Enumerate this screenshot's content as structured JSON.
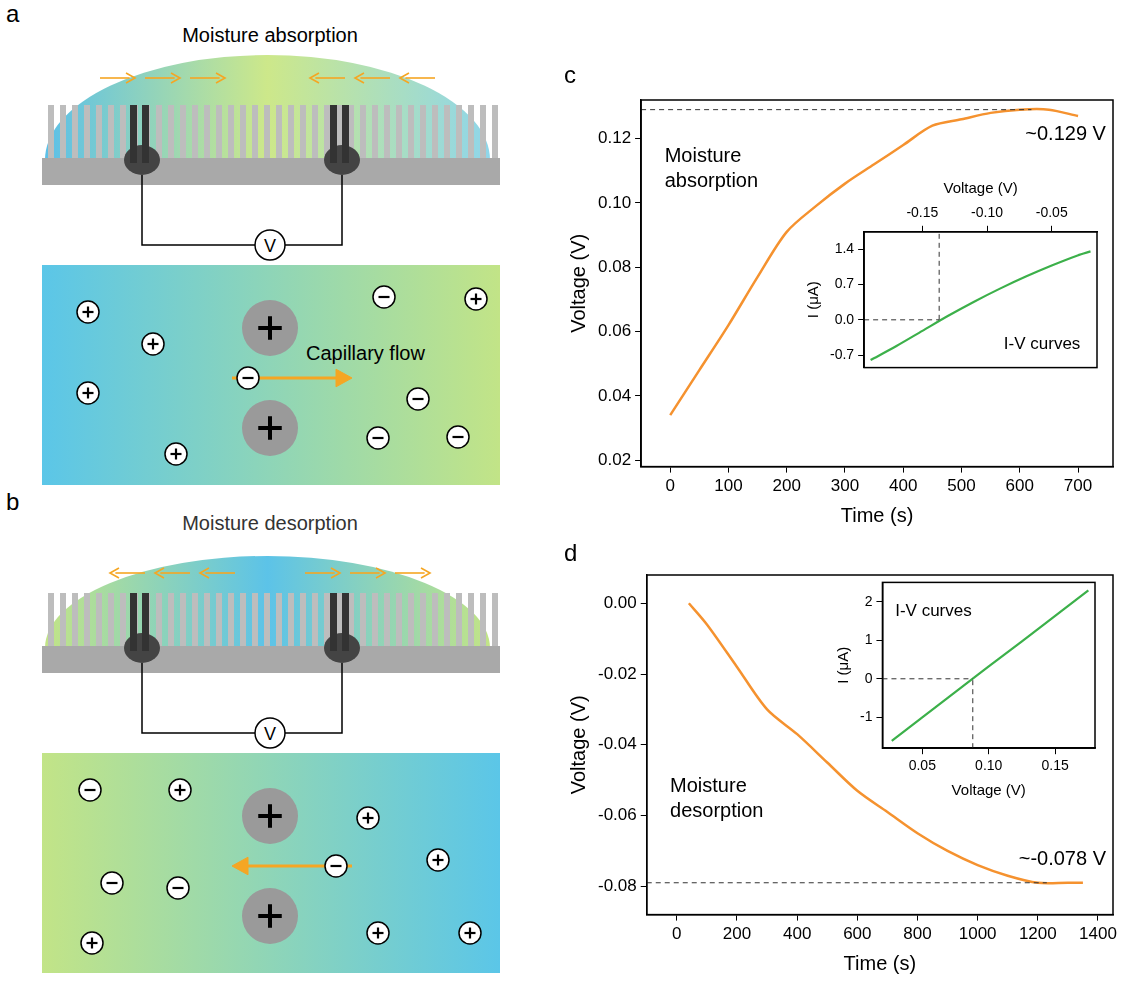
{
  "diagrams": [
    {
      "panel_label": "a",
      "title": "Moisture absorption",
      "meter": "V",
      "flow_label": "Capillary flow"
    },
    {
      "panel_label": "b",
      "title": "Moisture desorption",
      "meter": "V"
    }
  ],
  "chart_data": [
    {
      "type": "line",
      "panel_label": "c",
      "xlabel": "Time (s)",
      "ylabel": "Voltage (V)",
      "x": [
        0,
        50,
        100,
        150,
        200,
        250,
        300,
        350,
        400,
        450,
        500,
        550,
        600,
        650,
        700
      ],
      "values": [
        0.034,
        0.048,
        0.062,
        0.077,
        0.091,
        0.099,
        0.106,
        0.112,
        0.118,
        0.124,
        0.126,
        0.128,
        0.129,
        0.129,
        0.127
      ],
      "color": "#f5922f",
      "xlim": [
        -50,
        760
      ],
      "xticks": [
        0,
        100,
        200,
        300,
        400,
        500,
        600,
        700
      ],
      "ylim": [
        0.018,
        0.132
      ],
      "yticks": [
        0.02,
        0.04,
        0.06,
        0.08,
        {
          "value": 0.1,
          "label": "0.10"
        },
        0.12
      ],
      "grid": false,
      "annotations": [
        {
          "text": "Moisture absorption"
        },
        {
          "text": "~0.129 V",
          "value": 0.129
        }
      ],
      "reference_lines": [
        {
          "x": [
            -50,
            620
          ],
          "y": [
            0.129,
            0.129
          ]
        }
      ]
    },
    {
      "type": "line",
      "xlabel": "Voltage (V)",
      "ylabel": "I (μA)",
      "x": [
        -0.19,
        -0.17,
        -0.15,
        -0.13,
        -0.11,
        -0.09,
        -0.07,
        -0.05,
        -0.03,
        -0.02
      ],
      "values": [
        -0.8,
        -0.52,
        -0.22,
        0.08,
        0.36,
        0.62,
        0.86,
        1.08,
        1.28,
        1.36
      ],
      "color": "#3cb04a",
      "xlim": [
        -0.195,
        -0.015
      ],
      "xticks": [
        -0.15,
        {
          "value": -0.1,
          "label": "-0.10"
        },
        -0.05
      ],
      "ylim": [
        -0.95,
        1.75
      ],
      "yticks": [
        -0.7,
        {
          "value": 0,
          "label": "0.0"
        },
        0.7,
        1.4
      ],
      "grid": false,
      "annotations": [
        {
          "text": "I-V curves"
        }
      ],
      "reference_lines": [
        {
          "x": [
            -0.195,
            -0.137
          ],
          "y": [
            0,
            0
          ]
        },
        {
          "x": [
            -0.137,
            -0.137
          ],
          "y": [
            0,
            1.75
          ]
        }
      ]
    },
    {
      "type": "line",
      "panel_label": "d",
      "xlabel": "Time (s)",
      "ylabel": "Voltage (V)",
      "x": [
        40,
        100,
        200,
        300,
        400,
        500,
        600,
        700,
        800,
        900,
        1000,
        1100,
        1200,
        1300,
        1350
      ],
      "values": [
        0,
        -0.006,
        -0.018,
        -0.03,
        -0.037,
        -0.045,
        -0.053,
        -0.059,
        -0.065,
        -0.07,
        -0.074,
        -0.077,
        -0.079,
        -0.079,
        -0.079
      ],
      "color": "#f5922f",
      "xlim": [
        -100,
        1450
      ],
      "xticks": [
        0,
        200,
        400,
        600,
        800,
        1000,
        1200,
        1400
      ],
      "ylim": [
        -0.088,
        0.008
      ],
      "yticks": [
        {
          "value": 0,
          "label": "0.00"
        },
        -0.02,
        -0.04,
        -0.06,
        -0.08
      ],
      "grid": false,
      "annotations": [
        {
          "text": "Moisture desorption"
        },
        {
          "text": "~-0.078 V",
          "value": -0.078
        }
      ],
      "reference_lines": [
        {
          "x": [
            -100,
            1230
          ],
          "y": [
            -0.079,
            -0.079
          ]
        }
      ]
    },
    {
      "type": "line",
      "xlabel": "Voltage (V)",
      "ylabel": "I (μA)",
      "x": [
        0.027,
        0.05,
        0.075,
        0.1,
        0.125,
        0.15,
        0.175
      ],
      "values": [
        -1.61,
        -1.0,
        -0.34,
        0.32,
        0.97,
        1.63,
        2.29
      ],
      "color": "#3cb04a",
      "xlim": [
        0.02,
        0.18
      ],
      "xticks": [
        0.05,
        {
          "value": 0.1,
          "label": "0.10"
        },
        0.15
      ],
      "ylim": [
        -1.8,
        2.5
      ],
      "yticks": [
        -1,
        0,
        1,
        2
      ],
      "grid": false,
      "annotations": [
        {
          "text": "I-V curves"
        }
      ],
      "reference_lines": [
        {
          "x": [
            0.02,
            0.088
          ],
          "y": [
            0,
            0
          ]
        },
        {
          "x": [
            0.088,
            0.088
          ],
          "y": [
            -1.8,
            0
          ]
        }
      ]
    }
  ]
}
